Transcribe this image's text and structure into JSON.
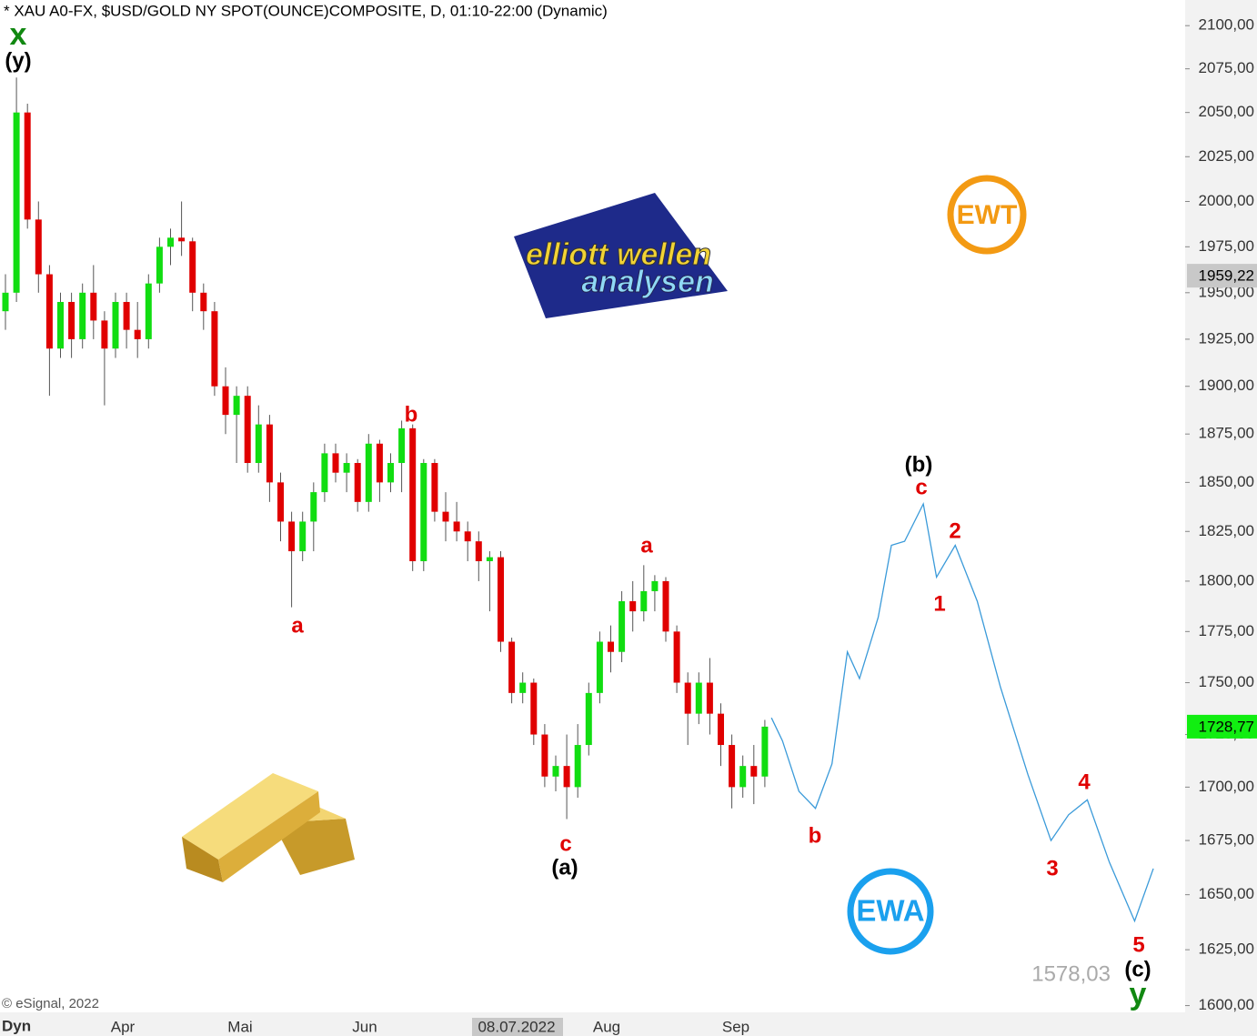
{
  "chart_data": {
    "type": "candlestick",
    "title": "* XAU A0-FX, $USD/GOLD NY SPOT(OUNCE)COMPOSITE, D, 01:10-22:00 (Dynamic)",
    "log_scale": true,
    "ylim": [
      1597,
      2115
    ],
    "yticks": [
      {
        "value": 1600,
        "label": "1600,00"
      },
      {
        "value": 1625,
        "label": "1625,00"
      },
      {
        "value": 1650,
        "label": "1650,00"
      },
      {
        "value": 1675,
        "label": "1675,00"
      },
      {
        "value": 1700,
        "label": "1700,00"
      },
      {
        "value": 1725,
        "label": "1725,00"
      },
      {
        "value": 1750,
        "label": "1750,00"
      },
      {
        "value": 1775,
        "label": "1775,00"
      },
      {
        "value": 1800,
        "label": "1800,00"
      },
      {
        "value": 1825,
        "label": "1825,00"
      },
      {
        "value": 1850,
        "label": "1850,00"
      },
      {
        "value": 1875,
        "label": "1875,00"
      },
      {
        "value": 1900,
        "label": "1900,00"
      },
      {
        "value": 1925,
        "label": "1925,00"
      },
      {
        "value": 1950,
        "label": "1950,00"
      },
      {
        "value": 1975,
        "label": "1975,00"
      },
      {
        "value": 2000,
        "label": "2000,00"
      },
      {
        "value": 2025,
        "label": "2025,00"
      },
      {
        "value": 2050,
        "label": "2050,00"
      },
      {
        "value": 2075,
        "label": "2075,00"
      },
      {
        "value": 2100,
        "label": "2100,00"
      }
    ],
    "x_axis_labels": [
      "Apr",
      "Mai",
      "Jun",
      "08.07.2022",
      "Aug",
      "Sep"
    ],
    "up_color": "#11dd11",
    "down_color": "#e00000",
    "candles": {
      "open": [
        1940,
        1950,
        2050,
        1990,
        1960,
        1920,
        1945,
        1925,
        1950,
        1935,
        1920,
        1945,
        1930,
        1925,
        1955,
        1975,
        1980,
        1978,
        1950,
        1940,
        1900,
        1885,
        1895,
        1860,
        1880,
        1850,
        1830,
        1815,
        1830,
        1845,
        1865,
        1855,
        1860,
        1840,
        1870,
        1850,
        1860,
        1878,
        1810,
        1860,
        1835,
        1830,
        1825,
        1820,
        1810,
        1812,
        1770,
        1745,
        1750,
        1725,
        1705,
        1710,
        1700,
        1720,
        1745,
        1770,
        1765,
        1790,
        1785,
        1795,
        1800,
        1775,
        1750,
        1735,
        1750,
        1735,
        1720,
        1700,
        1710,
        1705
      ],
      "high": [
        1960,
        2070,
        2055,
        2000,
        1965,
        1950,
        1950,
        1955,
        1965,
        1940,
        1950,
        1950,
        1945,
        1960,
        1980,
        1985,
        2000,
        1980,
        1955,
        1945,
        1910,
        1900,
        1900,
        1890,
        1885,
        1855,
        1835,
        1835,
        1850,
        1870,
        1870,
        1865,
        1862,
        1875,
        1872,
        1865,
        1882,
        1880,
        1862,
        1862,
        1845,
        1840,
        1830,
        1825,
        1815,
        1815,
        1772,
        1755,
        1752,
        1730,
        1715,
        1725,
        1730,
        1750,
        1775,
        1778,
        1795,
        1800,
        1808,
        1803,
        1802,
        1778,
        1755,
        1755,
        1762,
        1740,
        1725,
        1715,
        1720,
        1732
      ],
      "low": [
        1930,
        1945,
        1985,
        1950,
        1895,
        1915,
        1915,
        1920,
        1925,
        1890,
        1915,
        1920,
        1915,
        1920,
        1950,
        1965,
        1970,
        1940,
        1930,
        1895,
        1875,
        1860,
        1855,
        1855,
        1840,
        1820,
        1787,
        1810,
        1815,
        1840,
        1850,
        1845,
        1835,
        1835,
        1840,
        1845,
        1845,
        1805,
        1805,
        1830,
        1820,
        1820,
        1810,
        1800,
        1785,
        1765,
        1740,
        1740,
        1720,
        1700,
        1698,
        1685,
        1695,
        1715,
        1740,
        1755,
        1760,
        1775,
        1780,
        1785,
        1770,
        1745,
        1720,
        1730,
        1725,
        1710,
        1690,
        1695,
        1692,
        1700
      ],
      "close": [
        1950,
        2050,
        1990,
        1960,
        1920,
        1945,
        1925,
        1950,
        1935,
        1920,
        1945,
        1930,
        1925,
        1955,
        1975,
        1980,
        1978,
        1950,
        1940,
        1900,
        1885,
        1895,
        1860,
        1880,
        1850,
        1830,
        1815,
        1830,
        1845,
        1865,
        1855,
        1860,
        1840,
        1870,
        1850,
        1860,
        1878,
        1810,
        1860,
        1835,
        1830,
        1825,
        1820,
        1810,
        1812,
        1770,
        1745,
        1750,
        1725,
        1705,
        1710,
        1700,
        1720,
        1745,
        1770,
        1765,
        1790,
        1785,
        1795,
        1800,
        1775,
        1750,
        1735,
        1750,
        1735,
        1720,
        1700,
        1710,
        1705,
        1728.77
      ]
    },
    "projection": {
      "color": "#3a9ad9",
      "x": [
        69.6,
        70.6,
        72.1,
        73.6,
        75.1,
        76.5,
        77.6,
        79.3,
        80.5,
        81.7,
        83.4,
        84.6,
        86.3,
        88.3,
        90.4,
        92.9,
        95.0,
        96.6,
        98.3,
        100.3,
        102.6,
        104.3
      ],
      "values": [
        1733,
        1722,
        1698,
        1690,
        1711,
        1765,
        1752,
        1782,
        1818,
        1820,
        1839,
        1802,
        1818,
        1790,
        1748,
        1706,
        1675,
        1687,
        1694,
        1665,
        1638,
        1662
      ]
    },
    "price_markers": [
      {
        "value": 1959.22,
        "label": "1959,22",
        "color": "#c8c8c8"
      },
      {
        "value": 1728.77,
        "label": "1728,77",
        "color": "#11ee11"
      }
    ],
    "low_marker": {
      "value": 1578.03,
      "label": "1578,03"
    },
    "annotations": [
      {
        "text": "x",
        "color": "#118811"
      },
      {
        "text": "(y)",
        "color": "#000000"
      },
      {
        "text": "a",
        "color": "#e00000"
      },
      {
        "text": "b",
        "color": "#e00000"
      },
      {
        "text": "a",
        "color": "#e00000"
      },
      {
        "text": "c",
        "color": "#e00000"
      },
      {
        "text": "(a)",
        "color": "#000000"
      },
      {
        "text": "b",
        "color": "#e00000"
      },
      {
        "text": "(b)",
        "color": "#000000"
      },
      {
        "text": "c",
        "color": "#e00000"
      },
      {
        "text": "2",
        "color": "#e00000"
      },
      {
        "text": "1",
        "color": "#e00000"
      },
      {
        "text": "4",
        "color": "#e00000"
      },
      {
        "text": "3",
        "color": "#e00000"
      },
      {
        "text": "5",
        "color": "#e00000"
      },
      {
        "text": "(c)",
        "color": "#000000"
      },
      {
        "text": "y",
        "color": "#118811"
      }
    ],
    "logos": {
      "ewt": "EWT",
      "ewa": "EWA",
      "brand_top": "elliott wellen",
      "brand_bottom": "analysen"
    },
    "copyright": "© eSignal, 2022",
    "corner_label": "Dyn"
  }
}
